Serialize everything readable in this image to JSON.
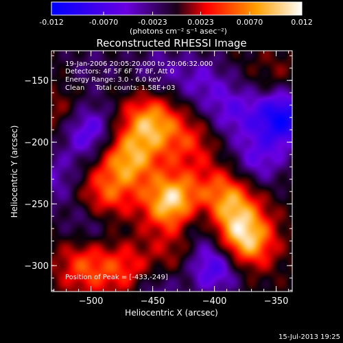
{
  "colorbar": {
    "ticks": [
      "-0.012",
      "-0.0070",
      "-0.0023",
      "0.0023",
      "0.0070",
      "0.012"
    ],
    "units": "(photons cm⁻² s⁻¹ asec⁻²)",
    "colors": [
      "#0000ff",
      "#6a00e0",
      "#ff0000",
      "#ffa000",
      "#ffffff"
    ]
  },
  "chart_data": {
    "type": "heatmap",
    "title": "Reconstructed RHESSI Image",
    "xlabel": "Heliocentric X (arcsec)",
    "ylabel": "Heliocentric Y (arcsec)",
    "xlim": [
      -532,
      -337
    ],
    "ylim": [
      -321,
      -126
    ],
    "xticks": [
      -500,
      -450,
      -400,
      -350
    ],
    "yticks": [
      -150,
      -200,
      -250,
      -300
    ],
    "zlim": [
      -0.012,
      0.012
    ],
    "annotations": [
      "19-Jan-2006 20:05:20.000 to 20:06:32.000",
      "Detectors: 4F 5F 6F 7F 8F, Att 0",
      "Energy Range: 3.0 - 6.0 keV",
      "Clean     Total counts: 1.58E+03"
    ],
    "peak_label": "Position of Peak = [-433,-249]",
    "peak": {
      "x": -433,
      "y": -249
    },
    "sources": [
      {
        "x": -433,
        "y": -249,
        "value": 0.012
      },
      {
        "x": -452,
        "y": -185,
        "value": 0.0085
      },
      {
        "x": -470,
        "y": -215,
        "value": 0.008
      },
      {
        "x": -490,
        "y": -245,
        "value": 0.006
      },
      {
        "x": -375,
        "y": -280,
        "value": 0.01
      },
      {
        "x": -385,
        "y": -255,
        "value": 0.006
      },
      {
        "x": -395,
        "y": -240,
        "value": 0.0045
      },
      {
        "x": -505,
        "y": -300,
        "value": 0.0055
      },
      {
        "x": -470,
        "y": -305,
        "value": 0.005
      },
      {
        "x": -420,
        "y": -200,
        "value": 0.004
      },
      {
        "x": -520,
        "y": -180,
        "value": 0.004
      },
      {
        "x": -350,
        "y": -150,
        "value": 0.002
      },
      {
        "x": -430,
        "y": -290,
        "value": 0.003
      },
      {
        "x": -500,
        "y": -140,
        "value": -0.002
      },
      {
        "x": -505,
        "y": -190,
        "value": -0.008
      },
      {
        "x": -345,
        "y": -180,
        "value": -0.011
      },
      {
        "x": -400,
        "y": -300,
        "value": -0.008
      },
      {
        "x": -410,
        "y": -150,
        "value": -0.004
      },
      {
        "x": -385,
        "y": -175,
        "value": -0.005
      },
      {
        "x": -415,
        "y": -260,
        "value": -0.005
      },
      {
        "x": -500,
        "y": -265,
        "value": -0.004
      },
      {
        "x": -450,
        "y": -320,
        "value": -0.004
      },
      {
        "x": -365,
        "y": -215,
        "value": -0.005
      },
      {
        "x": -445,
        "y": -140,
        "value": -0.003
      },
      {
        "x": -530,
        "y": -230,
        "value": -0.004
      }
    ]
  },
  "footer": {
    "date": "15-Jul-2013 19:25"
  }
}
